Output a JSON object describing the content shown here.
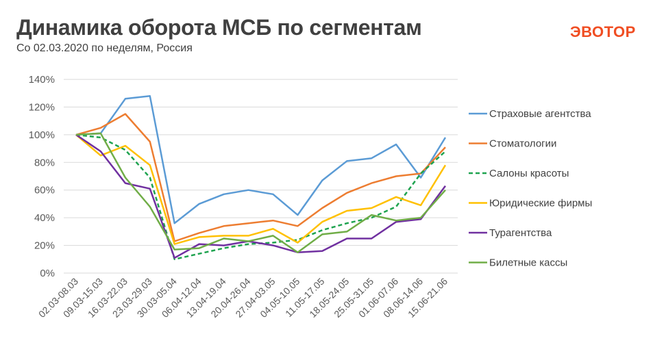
{
  "header": {
    "title": "Динамика оборота МСБ по сегментам",
    "subtitle": "Со 02.03.2020 по неделям, Россия",
    "logo": "ЭВОТОР"
  },
  "colors": {
    "logo": "#f04e23",
    "grid": "#d9d9d9",
    "text": "#404040"
  },
  "chart_data": {
    "type": "line",
    "title": "Динамика оборота МСБ по сегментам",
    "subtitle": "Со 02.03.2020 по неделям, Россия",
    "xlabel": "",
    "ylabel": "",
    "ylim": [
      0,
      140
    ],
    "yticks": [
      "0%",
      "20%",
      "40%",
      "60%",
      "80%",
      "100%",
      "120%",
      "140%"
    ],
    "grid": true,
    "legend_position": "right",
    "categories": [
      "02.03-08.03",
      "09.03-15.03",
      "16.03-22.03",
      "23.03-29.03",
      "30.03-05.04",
      "06.04-12.04",
      "13.04-19.04",
      "20.04-26.04",
      "27.04-03.05",
      "04.05-10.05",
      "11.05-17.05",
      "18.05-24.05",
      "25.05-31.05",
      "01.06-07.06",
      "08.06-14.06",
      "15.06-21.06"
    ],
    "series": [
      {
        "name": "Страховые агентства",
        "color": "#5b9bd5",
        "dash": false,
        "values": [
          100,
          101,
          126,
          128,
          36,
          50,
          57,
          60,
          57,
          42,
          67,
          81,
          83,
          93,
          69,
          98
        ]
      },
      {
        "name": "Стоматологии",
        "color": "#ed7d31",
        "dash": false,
        "values": [
          100,
          105,
          115,
          95,
          23,
          29,
          34,
          36,
          38,
          34,
          47,
          58,
          65,
          70,
          72,
          91
        ]
      },
      {
        "name": "Салоны красоты",
        "color": "#1ea34f",
        "dash": true,
        "values": [
          100,
          98,
          89,
          69,
          10,
          14,
          18,
          21,
          22,
          24,
          31,
          36,
          40,
          48,
          72,
          88
        ]
      },
      {
        "name": "Юридические фирмы",
        "color": "#ffc000",
        "dash": false,
        "values": [
          100,
          85,
          92,
          78,
          21,
          26,
          27,
          27,
          32,
          22,
          37,
          45,
          47,
          55,
          49,
          78
        ]
      },
      {
        "name": "Турагентства",
        "color": "#7030a0",
        "dash": false,
        "values": [
          100,
          88,
          65,
          61,
          11,
          21,
          20,
          23,
          20,
          15,
          16,
          25,
          25,
          37,
          39,
          63
        ]
      },
      {
        "name": "Билетные кассы",
        "color": "#70ad47",
        "dash": false,
        "values": [
          100,
          101,
          69,
          48,
          17,
          18,
          25,
          23,
          27,
          15,
          28,
          30,
          42,
          38,
          40,
          60
        ]
      }
    ]
  }
}
